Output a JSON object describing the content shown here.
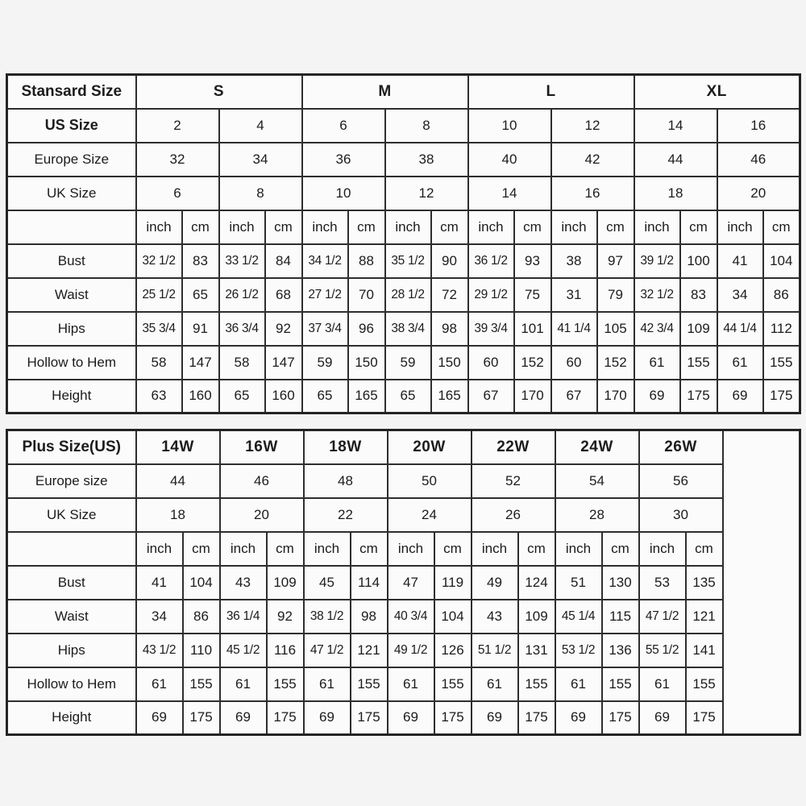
{
  "colors": {
    "table_border": "#2e2e2e",
    "background": "#f4f4f4",
    "text": "#1c1c1c"
  },
  "tables": [
    {
      "name": "standard-size-table",
      "corner_label": "Stansard Size",
      "group_headers": [
        "S",
        "M",
        "L",
        "XL"
      ],
      "size_rows": [
        {
          "label": "US Size",
          "values": [
            "2",
            "4",
            "6",
            "8",
            "10",
            "12",
            "14",
            "16"
          ]
        },
        {
          "label": "Europe Size",
          "values": [
            "32",
            "34",
            "36",
            "38",
            "40",
            "42",
            "44",
            "46"
          ]
        },
        {
          "label": "UK Size",
          "values": [
            "6",
            "8",
            "10",
            "12",
            "14",
            "16",
            "18",
            "20"
          ]
        }
      ],
      "unit_labels": [
        "inch",
        "cm"
      ],
      "measure_rows": [
        {
          "label": "Bust",
          "values": [
            "32 1/2",
            "83",
            "33 1/2",
            "84",
            "34 1/2",
            "88",
            "35 1/2",
            "90",
            "36 1/2",
            "93",
            "38",
            "97",
            "39 1/2",
            "100",
            "41",
            "104"
          ]
        },
        {
          "label": "Waist",
          "values": [
            "25 1/2",
            "65",
            "26 1/2",
            "68",
            "27 1/2",
            "70",
            "28 1/2",
            "72",
            "29 1/2",
            "75",
            "31",
            "79",
            "32 1/2",
            "83",
            "34",
            "86"
          ]
        },
        {
          "label": "Hips",
          "values": [
            "35 3/4",
            "91",
            "36 3/4",
            "92",
            "37 3/4",
            "96",
            "38 3/4",
            "98",
            "39 3/4",
            "101",
            "41 1/4",
            "105",
            "42 3/4",
            "109",
            "44 1/4",
            "112"
          ]
        },
        {
          "label": "Hollow to Hem",
          "values": [
            "58",
            "147",
            "58",
            "147",
            "59",
            "150",
            "59",
            "150",
            "60",
            "152",
            "60",
            "152",
            "61",
            "155",
            "61",
            "155"
          ]
        },
        {
          "label": "Height",
          "values": [
            "63",
            "160",
            "65",
            "160",
            "65",
            "165",
            "65",
            "165",
            "67",
            "170",
            "67",
            "170",
            "69",
            "175",
            "69",
            "175"
          ]
        }
      ]
    },
    {
      "name": "plus-size-table",
      "corner_label": "Plus Size(US)",
      "group_headers": [
        "14W",
        "16W",
        "18W",
        "20W",
        "22W",
        "24W",
        "26W"
      ],
      "size_rows": [
        {
          "label": "Europe size",
          "values": [
            "44",
            "46",
            "48",
            "50",
            "52",
            "54",
            "56"
          ]
        },
        {
          "label": "UK Size",
          "values": [
            "18",
            "20",
            "22",
            "24",
            "26",
            "28",
            "30"
          ]
        }
      ],
      "unit_labels": [
        "inch",
        "cm"
      ],
      "measure_rows": [
        {
          "label": "Bust",
          "values": [
            "41",
            "104",
            "43",
            "109",
            "45",
            "114",
            "47",
            "119",
            "49",
            "124",
            "51",
            "130",
            "53",
            "135"
          ]
        },
        {
          "label": "Waist",
          "values": [
            "34",
            "86",
            "36 1/4",
            "92",
            "38 1/2",
            "98",
            "40 3/4",
            "104",
            "43",
            "109",
            "45 1/4",
            "115",
            "47 1/2",
            "121"
          ]
        },
        {
          "label": "Hips",
          "values": [
            "43 1/2",
            "110",
            "45 1/2",
            "116",
            "47 1/2",
            "121",
            "49 1/2",
            "126",
            "51 1/2",
            "131",
            "53 1/2",
            "136",
            "55 1/2",
            "141"
          ]
        },
        {
          "label": "Hollow to Hem",
          "values": [
            "61",
            "155",
            "61",
            "155",
            "61",
            "155",
            "61",
            "155",
            "61",
            "155",
            "61",
            "155",
            "61",
            "155"
          ]
        },
        {
          "label": "Height",
          "values": [
            "69",
            "175",
            "69",
            "175",
            "69",
            "175",
            "69",
            "175",
            "69",
            "175",
            "69",
            "175",
            "69",
            "175"
          ]
        }
      ]
    }
  ]
}
